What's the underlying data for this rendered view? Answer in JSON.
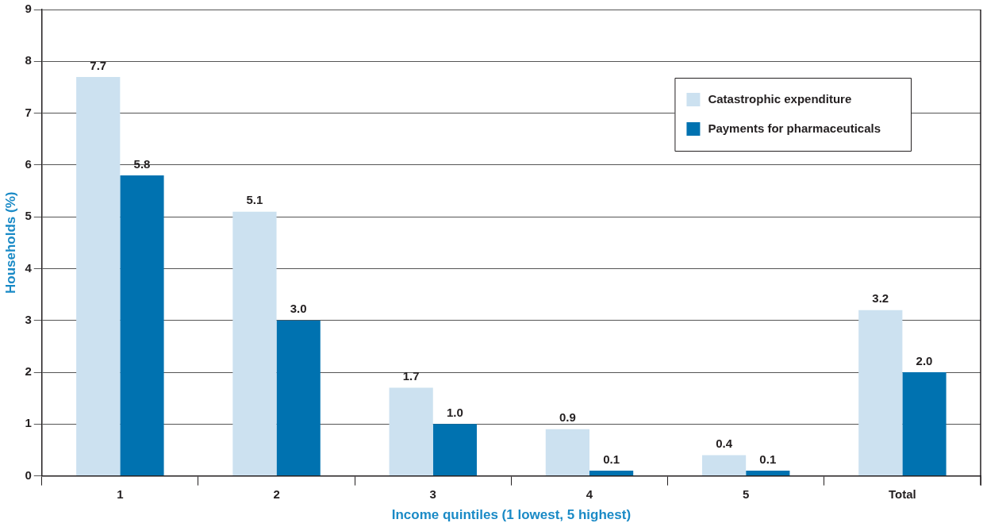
{
  "chart_data": {
    "type": "bar",
    "xlabel": "Income quintiles (1 lowest, 5 highest)",
    "ylabel": "Households (%)",
    "categories": [
      "1",
      "2",
      "3",
      "4",
      "5",
      "Total"
    ],
    "series": [
      {
        "name": "Catastrophic expenditure",
        "color": "#cce1f0",
        "values": [
          7.7,
          5.1,
          1.7,
          0.9,
          0.4,
          3.2
        ],
        "value_labels": [
          "7.7",
          "5.1",
          "1.7",
          "0.9",
          "0.4",
          "3.2"
        ]
      },
      {
        "name": "Payments for pharmaceuticals",
        "color": "#0072b0",
        "values": [
          5.8,
          3.0,
          1.0,
          0.1,
          0.1,
          2.0
        ],
        "value_labels": [
          "5.8",
          "3.0",
          "1.0",
          "0.1",
          "0.1",
          "2.0"
        ]
      }
    ],
    "ylim": [
      0,
      9
    ],
    "yticks": [
      0,
      1,
      2,
      3,
      4,
      5,
      6,
      7,
      8,
      9
    ],
    "grid": "y",
    "legend": "top right"
  }
}
